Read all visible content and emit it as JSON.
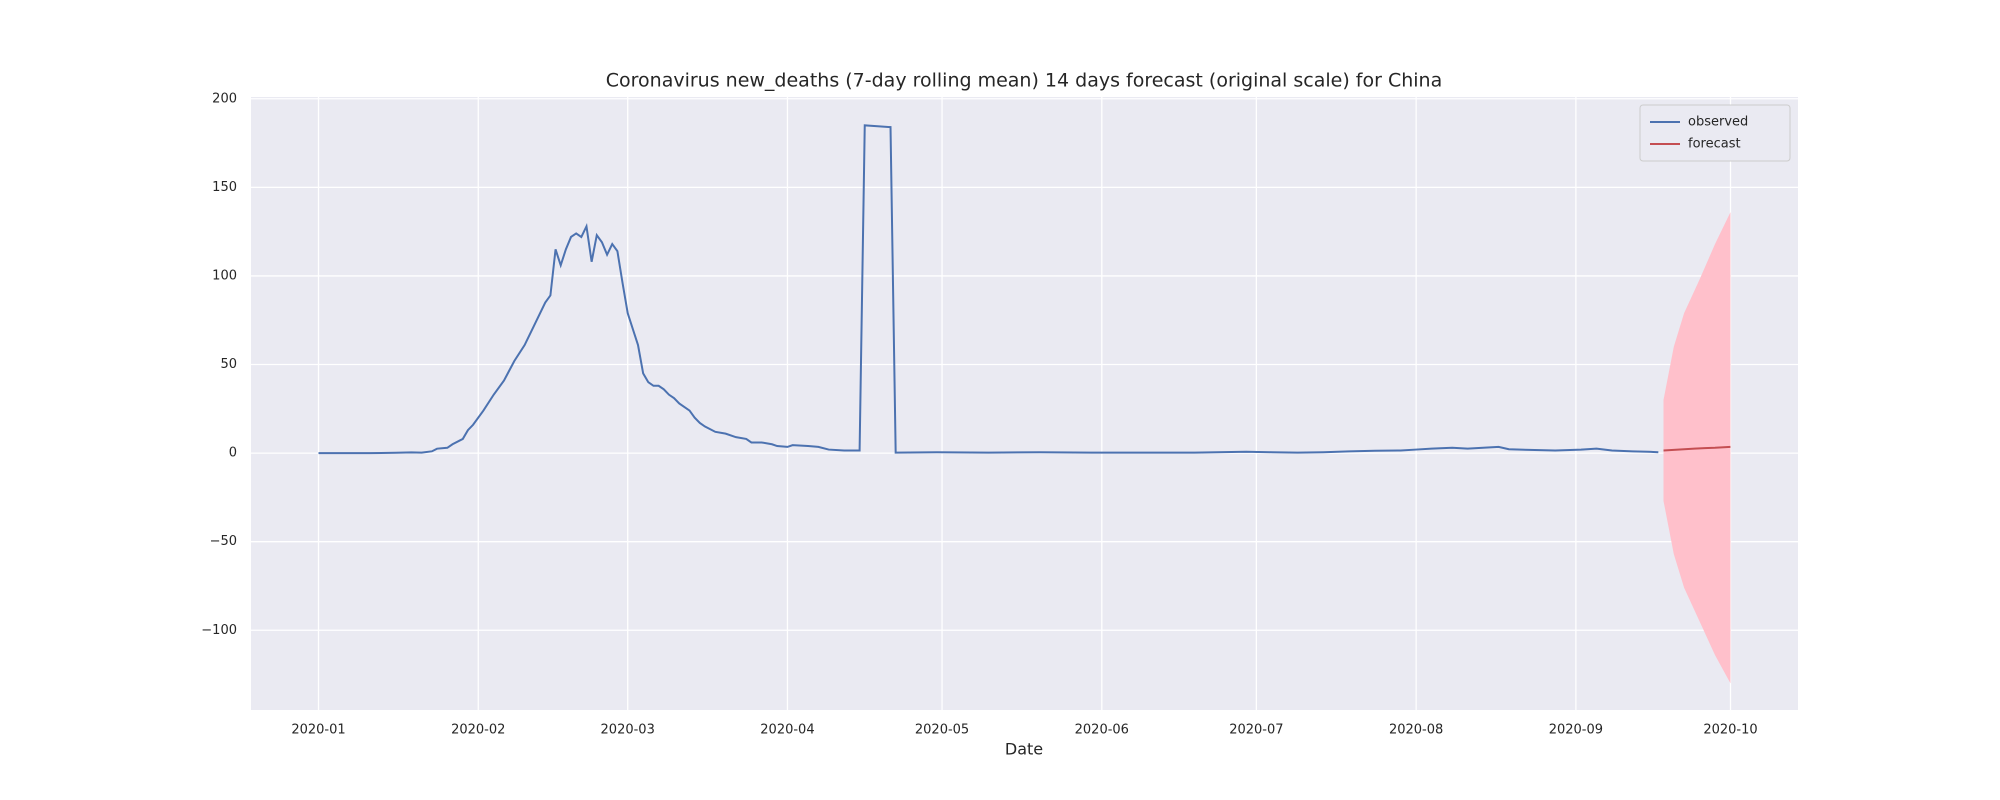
{
  "chart_data": {
    "type": "line",
    "title": "Coronavirus new_deaths (7-day rolling mean) 14 days forecast (original scale) for China",
    "xlabel": "Date",
    "xlim": [
      -13.1,
      287.1
    ],
    "ylim": [
      -145,
      201
    ],
    "xticks": [
      {
        "value": 0,
        "label": "2020-01"
      },
      {
        "value": 31,
        "label": "2020-02"
      },
      {
        "value": 60,
        "label": "2020-03"
      },
      {
        "value": 91,
        "label": "2020-04"
      },
      {
        "value": 121,
        "label": "2020-05"
      },
      {
        "value": 152,
        "label": "2020-06"
      },
      {
        "value": 182,
        "label": "2020-07"
      },
      {
        "value": 213,
        "label": "2020-08"
      },
      {
        "value": 244,
        "label": "2020-09"
      },
      {
        "value": 274,
        "label": "2020-10"
      }
    ],
    "yticks": [
      {
        "value": -100,
        "label": "−100"
      },
      {
        "value": -50,
        "label": "−50"
      },
      0,
      50,
      100,
      150,
      200
    ],
    "grid": true,
    "legend": "upper right",
    "series": [
      {
        "name": "observed",
        "color": "#4c72b0",
        "x": [
          0,
          10,
          15,
          18,
          20,
          22,
          23,
          25,
          26,
          28,
          29,
          30,
          32,
          34,
          36,
          38,
          40,
          42,
          44,
          45,
          46,
          47,
          48,
          49,
          50,
          51,
          52,
          53,
          54,
          55,
          56,
          57,
          58,
          59,
          60,
          62,
          63,
          64,
          65,
          66,
          67,
          68,
          69,
          70,
          72,
          73,
          74,
          75,
          77,
          79,
          81,
          83,
          84,
          86,
          88,
          89,
          91,
          92,
          95,
          97,
          99,
          102,
          105,
          106,
          111,
          112,
          120,
          130,
          140,
          150,
          170,
          180,
          185,
          190,
          195,
          200,
          205,
          210,
          213,
          216,
          220,
          223,
          226,
          229,
          231,
          235,
          240,
          245,
          248,
          251,
          255,
          258,
          260
        ],
        "values": [
          0,
          0,
          0.2,
          0.4,
          0.3,
          1,
          2.5,
          3,
          5,
          8,
          13,
          16,
          24,
          33,
          41,
          52,
          61,
          73,
          85,
          89,
          115,
          106,
          115,
          122,
          124,
          122,
          128,
          108,
          123,
          119,
          112,
          118,
          114,
          96,
          79,
          61,
          45,
          40,
          38,
          38,
          36,
          33,
          31,
          28,
          24,
          20,
          17,
          15,
          12,
          11,
          9,
          8,
          6,
          6,
          5,
          4,
          3.5,
          4.5,
          4,
          3.5,
          2,
          1.5,
          1.5,
          185,
          184,
          0.3,
          0.5,
          0.3,
          0.5,
          0.3,
          0.3,
          0.8,
          0.5,
          0.3,
          0.5,
          1,
          1.3,
          1.5,
          2,
          2.5,
          3,
          2.5,
          3,
          3.5,
          2.2,
          1.8,
          1.5,
          2,
          2.5,
          1.5,
          1,
          0.8,
          0.5
        ]
      },
      {
        "name": "forecast",
        "color": "#c44e52",
        "x": [
          261,
          263,
          265,
          267,
          269,
          271,
          274
        ],
        "values": [
          1.5,
          1.8,
          2.2,
          2.5,
          2.8,
          3,
          3.5
        ]
      }
    ],
    "band": {
      "color": "#ffc0cb",
      "x": [
        261,
        263,
        265,
        268,
        271,
        274
      ],
      "upper": [
        30,
        60,
        79,
        98,
        118,
        136
      ],
      "lower": [
        -27,
        -57,
        -76,
        -95,
        -114,
        -130
      ]
    }
  }
}
